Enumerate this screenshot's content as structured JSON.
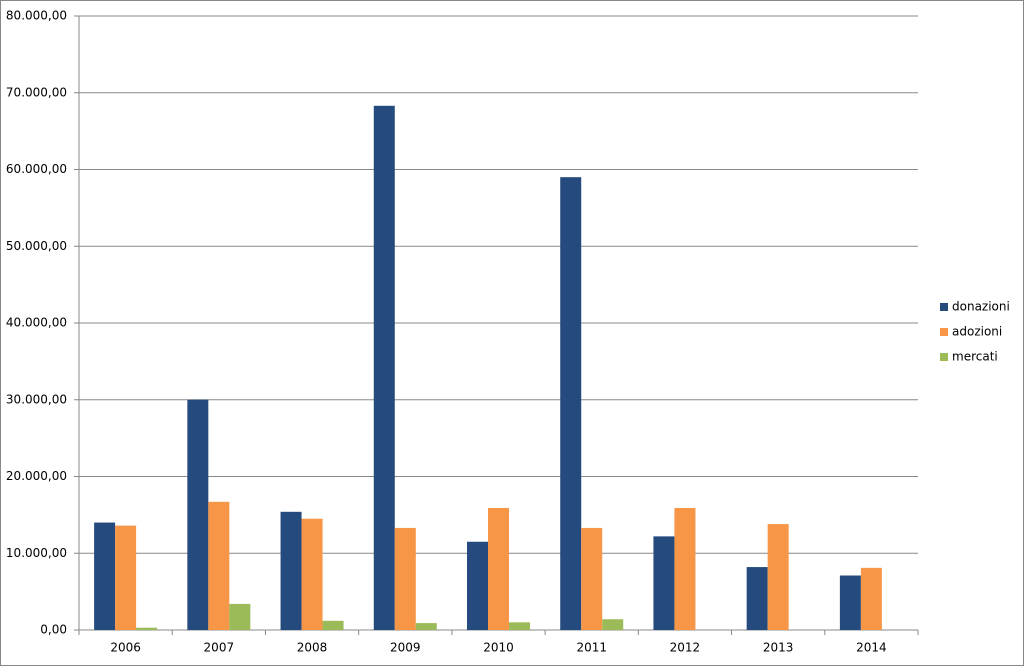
{
  "chart_data": {
    "type": "bar",
    "categories": [
      "2006",
      "2007",
      "2008",
      "2009",
      "2010",
      "2011",
      "2012",
      "2013",
      "2014"
    ],
    "series": [
      {
        "name": "donazioni",
        "color": "#254b7e",
        "values": [
          14000,
          30000,
          15400,
          68300,
          11500,
          59000,
          12200,
          8200,
          7100
        ]
      },
      {
        "name": "adozioni",
        "color": "#f79646",
        "values": [
          13600,
          16700,
          14500,
          13300,
          15900,
          13300,
          15900,
          13800,
          8100
        ]
      },
      {
        "name": "mercati",
        "color": "#9bbb59",
        "values": [
          300,
          3400,
          1200,
          900,
          1000,
          1400,
          null,
          null,
          null
        ]
      }
    ],
    "ylim": [
      0,
      80000
    ],
    "yticks": [
      {
        "value": 0,
        "label": "0,00"
      },
      {
        "value": 10000,
        "label": "10.000,00"
      },
      {
        "value": 20000,
        "label": "20.000,00"
      },
      {
        "value": 30000,
        "label": "30.000,00"
      },
      {
        "value": 40000,
        "label": "40.000,00"
      },
      {
        "value": 50000,
        "label": "50.000,00"
      },
      {
        "value": 60000,
        "label": "60.000,00"
      },
      {
        "value": 70000,
        "label": "70.000,00"
      },
      {
        "value": 80000,
        "label": "80.000,00"
      }
    ],
    "grid": true,
    "legend": "right"
  }
}
